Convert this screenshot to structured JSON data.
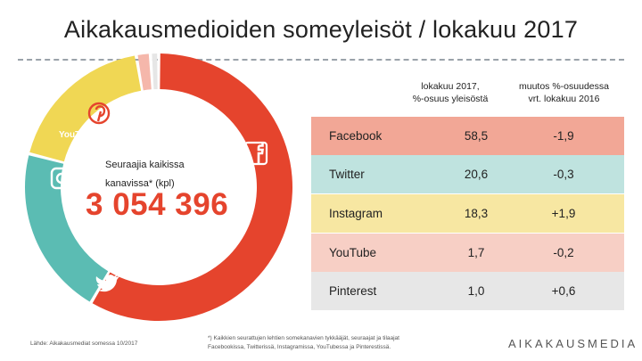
{
  "title": "Aikakausmedioiden someyleisöt / lokakuu 2017",
  "center": {
    "label_line1": "Seuraajia kaikissa",
    "label_line2": "kanavissa* (kpl)",
    "total": "3 054 396"
  },
  "table": {
    "headers": {
      "share_line1": "lokakuu 2017,",
      "share_line2": "%-osuus yleisöstä",
      "change_line1": "muutos %-osuudessa",
      "change_line2": "vrt. lokakuu 2016"
    },
    "rows": [
      {
        "name": "Facebook",
        "share": "58,5",
        "change": "-1,9"
      },
      {
        "name": "Twitter",
        "share": "20,6",
        "change": "-0,3"
      },
      {
        "name": "Instagram",
        "share": "18,3",
        "change": "+1,9"
      },
      {
        "name": "YouTube",
        "share": "1,7",
        "change": "-0,2"
      },
      {
        "name": "Pinterest",
        "share": "1,0",
        "change": "+0,6"
      }
    ]
  },
  "chart_data": {
    "type": "pie",
    "variant": "donut",
    "title": "Aikakausmedioiden someyleisöt / lokakuu 2017",
    "categories": [
      "Facebook",
      "Twitter",
      "Instagram",
      "YouTube",
      "Pinterest"
    ],
    "values": [
      58.5,
      20.6,
      18.3,
      1.7,
      1.0
    ],
    "unit": "%",
    "colors": [
      "#e5442d",
      "#5bbcb3",
      "#f0d754",
      "#f5b7ab",
      "#e6e6e6"
    ],
    "icons": [
      "facebook-icon",
      "twitter-icon",
      "instagram-icon",
      "youtube-icon",
      "pinterest-icon"
    ]
  },
  "source": "Lähde: Aikakausmediat somessa 10/2017",
  "footnote": {
    "line1": "*) Kaikkien seurattujen lehtien somekanavien tykkääjät, seuraajat ja tilaajat",
    "line2": "Facebookissa, Twitterissä, Instagramissa, YouTubessa ja Pinterestissä."
  },
  "brand": "AIKAKAUSMEDIA",
  "icon_labels": {
    "youtube": "YouTube"
  }
}
